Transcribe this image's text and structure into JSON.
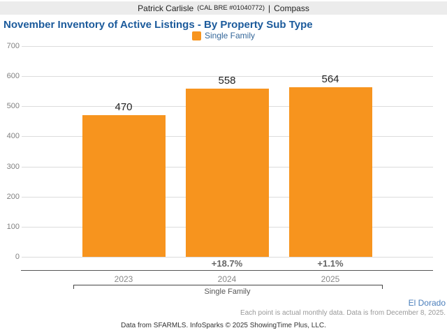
{
  "header": {
    "agent_name": "Patrick Carlisle",
    "license": "(CAL BRE #01040772)",
    "separator": "|",
    "brand": "Compass"
  },
  "title": "November Inventory of Active Listings - By Property Sub Type",
  "legend": {
    "label": "Single Family",
    "swatch_color": "#f7941e"
  },
  "chart_data": {
    "type": "bar",
    "title": "November Inventory of Active Listings - By Property Sub Type",
    "categories": [
      "2023",
      "2024",
      "2025"
    ],
    "series": [
      {
        "name": "Single Family",
        "values": [
          470,
          558,
          564
        ]
      }
    ],
    "value_labels": [
      "470",
      "558",
      "564"
    ],
    "pct_change_labels": [
      "",
      "+18.7%",
      "+1.1%"
    ],
    "yticks": [
      0,
      100,
      200,
      300,
      400,
      500,
      600,
      700
    ],
    "ylim": [
      0,
      700
    ],
    "grid": true,
    "legend_position": "top-center",
    "bar_color": "#f7941e",
    "group_label": "Single Family"
  },
  "footer": {
    "region_label": "El Dorado",
    "data_note": "Each point is actual monthly data. Data is from December 8, 2025.",
    "attribution": "Data from SFARMLS. InfoSparks © 2025 ShowingTime Plus, LLC."
  }
}
